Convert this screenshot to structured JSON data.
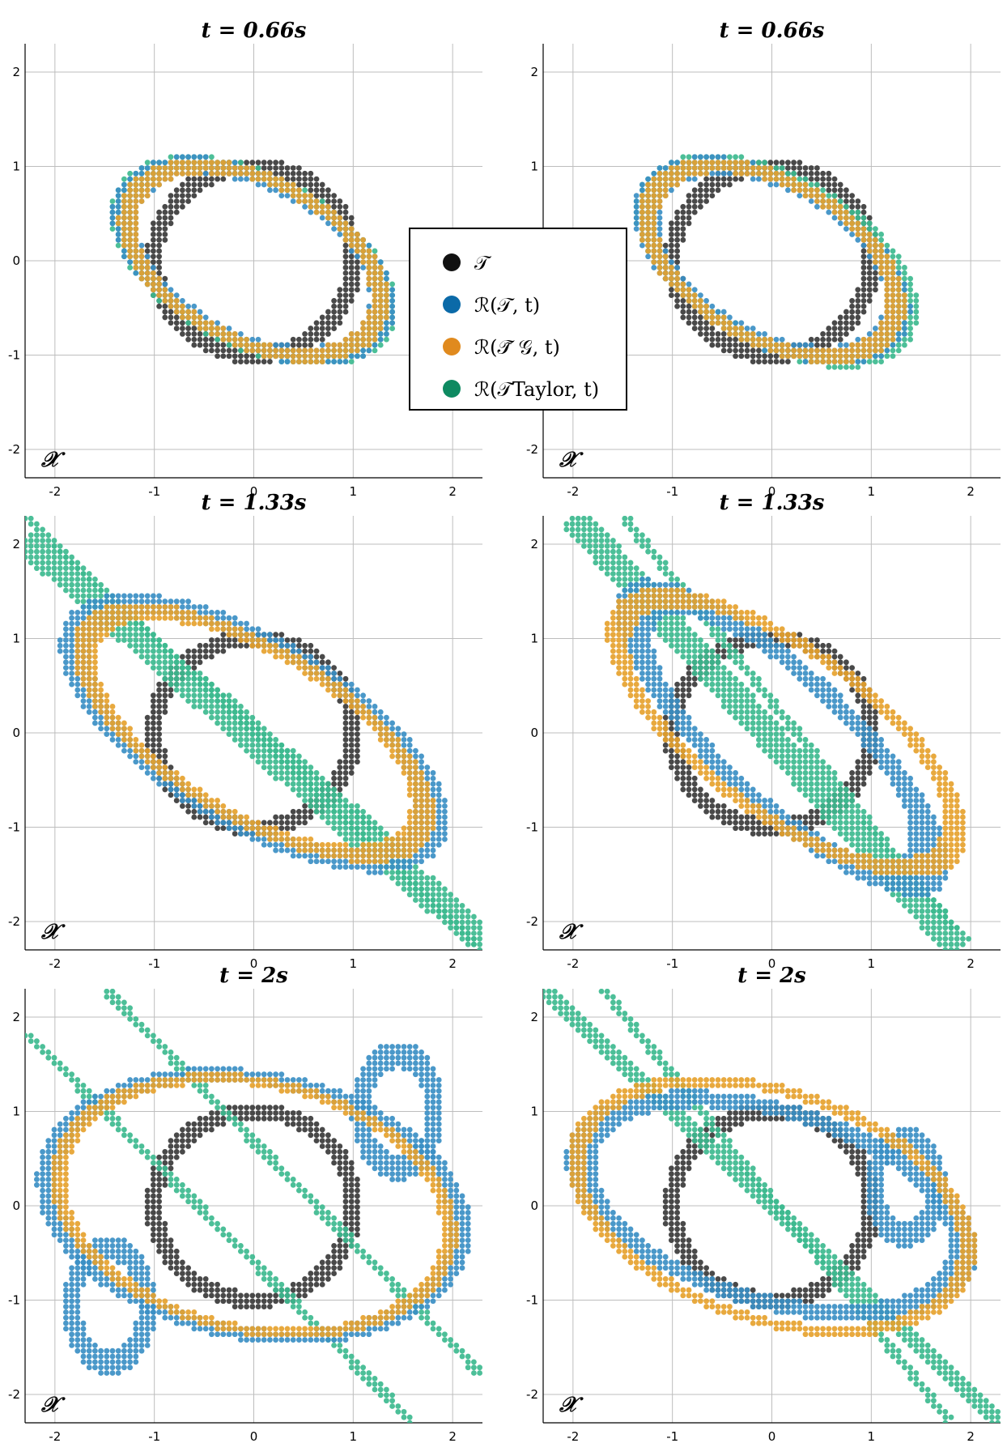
{
  "colors": {
    "target": "#3a3a3a",
    "reach_true": "#3b8fc4",
    "reach_approx": "#e6a22e",
    "reach_taylor": "#3dba8f",
    "grid": "#bdbdbd",
    "legend_target": "#111111",
    "legend_true": "#0b6aa8",
    "legend_approx": "#e08a1e",
    "legend_taylor": "#0e8a61"
  },
  "space_label": "𝒳",
  "legend": {
    "target": "𝒯",
    "reach_true": "ℛ(𝒯, t)",
    "reach_approx": "ℛ(𝒯̃ 𝒢, t)",
    "reach_taylor": "ℛ(𝒯Taylor, t)"
  },
  "chart_data": [
    {
      "id": "r1c1",
      "type": "scatter",
      "title": "t = 0.66s",
      "time": 0.66,
      "xlim": [
        -2.3,
        2.3
      ],
      "ylim": [
        -2.3,
        2.3
      ],
      "ticks": [
        -2,
        -1,
        0,
        1,
        2
      ],
      "tick_labels": [
        "-2",
        "-1",
        "0",
        "1",
        "2"
      ],
      "grid": true,
      "target": {
        "shape": "unit-circle",
        "cx": 0,
        "cy": 0,
        "r": 1,
        "width": 0.18
      },
      "series": [
        {
          "key": "reach_true",
          "kind": "ellipse",
          "cx": 0.0,
          "cy": 0.0,
          "a": 1.42,
          "b": 0.82,
          "angle": -30,
          "width": 0.17
        },
        {
          "key": "reach_approx",
          "kind": "ellipse",
          "cx": 0.0,
          "cy": 0.0,
          "a": 1.38,
          "b": 0.84,
          "angle": -30,
          "width": 0.13
        },
        {
          "key": "reach_taylor",
          "kind": "ellipse",
          "cx": 0.0,
          "cy": 0.0,
          "a": 1.47,
          "b": 0.85,
          "angle": -30,
          "width": 0.13
        }
      ]
    },
    {
      "id": "r1c2",
      "type": "scatter",
      "title": "t = 0.66s",
      "time": 0.66,
      "xlim": [
        -2.3,
        2.3
      ],
      "ylim": [
        -2.3,
        2.3
      ],
      "ticks": [
        -2,
        -1,
        0,
        1,
        2
      ],
      "tick_labels": [
        "-2",
        "-1",
        "0",
        "1",
        "2"
      ],
      "grid": true,
      "target": {
        "shape": "unit-circle",
        "cx": 0,
        "cy": 0,
        "r": 1,
        "width": 0.18
      },
      "series": [
        {
          "key": "reach_true",
          "kind": "ellipse",
          "cx": 0.0,
          "cy": 0.0,
          "a": 1.4,
          "b": 0.8,
          "angle": -32,
          "width": 0.17
        },
        {
          "key": "reach_approx",
          "kind": "ellipse",
          "cx": 0.0,
          "cy": 0.0,
          "a": 1.38,
          "b": 0.82,
          "angle": -32,
          "width": 0.13
        },
        {
          "key": "reach_taylor",
          "kind": "ellipse",
          "cx": 0.05,
          "cy": 0.0,
          "a": 1.47,
          "b": 0.84,
          "angle": -32,
          "width": 0.13
        }
      ]
    },
    {
      "id": "r2c1",
      "type": "scatter",
      "title": "t = 1.33s",
      "time": 1.33,
      "xlim": [
        -2.3,
        2.3
      ],
      "ylim": [
        -2.3,
        2.3
      ],
      "ticks": [
        -2,
        -1,
        0,
        1,
        2
      ],
      "tick_labels": [
        "-2",
        "-1",
        "0",
        "1",
        "2"
      ],
      "grid": true,
      "target": {
        "shape": "unit-circle",
        "cx": 0,
        "cy": 0,
        "r": 1,
        "width": 0.18
      },
      "series": [
        {
          "key": "reach_true",
          "kind": "ellipse",
          "cx": 0.0,
          "cy": 0.0,
          "a": 2.05,
          "b": 0.92,
          "angle": -33,
          "width": 0.17
        },
        {
          "key": "reach_approx",
          "kind": "ellipse",
          "cx": 0.0,
          "cy": 0.0,
          "a": 1.95,
          "b": 0.86,
          "angle": -33,
          "width": 0.13
        },
        {
          "key": "reach_taylor",
          "kind": "band",
          "x0": -2.3,
          "y0": 2.3,
          "x1": 2.3,
          "y1": -2.3,
          "width": 0.12
        },
        {
          "key": "reach_taylor",
          "kind": "band",
          "x0": -2.3,
          "y0": 2.05,
          "x1": 2.3,
          "y1": -2.2,
          "width": 0.3
        },
        {
          "key": "reach_taylor",
          "kind": "band",
          "x0": -0.6,
          "y0": 0.65,
          "x1": 1.55,
          "y1": -1.3,
          "width": 0.1
        }
      ]
    },
    {
      "id": "r2c2",
      "type": "scatter",
      "title": "t = 1.33s",
      "time": 1.33,
      "xlim": [
        -2.3,
        2.3
      ],
      "ylim": [
        -2.3,
        2.3
      ],
      "ticks": [
        -2,
        -1,
        0,
        1,
        2
      ],
      "tick_labels": [
        "-2",
        "-1",
        "0",
        "1",
        "2"
      ],
      "grid": true,
      "target": {
        "shape": "unit-circle",
        "cx": 0,
        "cy": 0,
        "r": 1,
        "width": 0.18
      },
      "series": [
        {
          "key": "reach_true",
          "kind": "ellipse",
          "cx": 0.1,
          "cy": -0.05,
          "a": 2.0,
          "b": 0.65,
          "angle": -45,
          "width": 0.17
        },
        {
          "key": "reach_approx",
          "kind": "ellipse",
          "cx": 0.15,
          "cy": 0.0,
          "a": 2.05,
          "b": 0.85,
          "angle": -38,
          "width": 0.12
        },
        {
          "key": "reach_taylor",
          "kind": "band",
          "x0": -2.0,
          "y0": 2.3,
          "x1": 1.9,
          "y1": -2.3,
          "width": 0.3
        },
        {
          "key": "reach_taylor",
          "kind": "band",
          "x0": -1.5,
          "y0": 2.3,
          "x1": 1.85,
          "y1": -2.1,
          "width": 0.1
        }
      ]
    },
    {
      "id": "r3c1",
      "type": "scatter",
      "title": "t = 2s",
      "time": 2.0,
      "xlim": [
        -2.3,
        2.3
      ],
      "ylim": [
        -2.3,
        2.3
      ],
      "ticks": [
        -2,
        -1,
        0,
        1,
        2
      ],
      "tick_labels": [
        "-2",
        "-1",
        "0",
        "1",
        "2"
      ],
      "grid": true,
      "target": {
        "shape": "unit-circle",
        "cx": 0,
        "cy": 0,
        "r": 1,
        "width": 0.18
      },
      "series": [
        {
          "key": "reach_true",
          "kind": "ellipse",
          "cx": 0.0,
          "cy": 0.0,
          "a": 2.1,
          "b": 1.35,
          "angle": -12,
          "width": 0.15
        },
        {
          "key": "reach_true",
          "kind": "ellipse",
          "cx": 1.45,
          "cy": 1.0,
          "a": 0.38,
          "b": 0.6,
          "angle": 0,
          "width": 0.18
        },
        {
          "key": "reach_true",
          "kind": "ellipse",
          "cx": -1.45,
          "cy": -1.05,
          "a": 0.38,
          "b": 0.6,
          "angle": 0,
          "width": 0.18
        },
        {
          "key": "reach_approx",
          "kind": "ellipse",
          "cx": 0.0,
          "cy": 0.0,
          "a": 2.0,
          "b": 1.3,
          "angle": -14,
          "width": 0.11
        },
        {
          "key": "reach_taylor",
          "kind": "band",
          "x0": -1.5,
          "y0": 2.3,
          "x1": 2.3,
          "y1": -1.8,
          "width": 0.1
        },
        {
          "key": "reach_taylor",
          "kind": "band",
          "x0": -2.3,
          "y0": 1.85,
          "x1": 1.6,
          "y1": -2.3,
          "width": 0.1
        }
      ]
    },
    {
      "id": "r3c2",
      "type": "scatter",
      "title": "t = 2s",
      "time": 2.0,
      "xlim": [
        -2.3,
        2.3
      ],
      "ylim": [
        -2.3,
        2.3
      ],
      "ticks": [
        -2,
        -1,
        0,
        1,
        2
      ],
      "tick_labels": [
        "-2",
        "-1",
        "0",
        "1",
        "2"
      ],
      "grid": true,
      "target": {
        "shape": "unit-circle",
        "cx": 0,
        "cy": 0,
        "r": 1,
        "width": 0.18
      },
      "series": [
        {
          "key": "reach_true",
          "kind": "ellipse",
          "cx": 0.0,
          "cy": 0.0,
          "a": 2.0,
          "b": 1.0,
          "angle": -18,
          "width": 0.16
        },
        {
          "key": "reach_true",
          "kind": "ellipse",
          "cx": 1.35,
          "cy": 0.2,
          "a": 0.32,
          "b": 0.5,
          "angle": 0,
          "width": 0.18
        },
        {
          "key": "reach_approx",
          "kind": "ellipse",
          "cx": 0.0,
          "cy": 0.0,
          "a": 2.05,
          "b": 1.2,
          "angle": -20,
          "width": 0.11
        },
        {
          "key": "reach_taylor",
          "kind": "band",
          "x0": -2.3,
          "y0": 2.3,
          "x1": 2.3,
          "y1": -2.3,
          "width": 0.18
        },
        {
          "key": "reach_taylor",
          "kind": "band",
          "x0": -1.7,
          "y0": 2.3,
          "x1": 1.8,
          "y1": -2.3,
          "width": 0.1
        }
      ]
    }
  ]
}
